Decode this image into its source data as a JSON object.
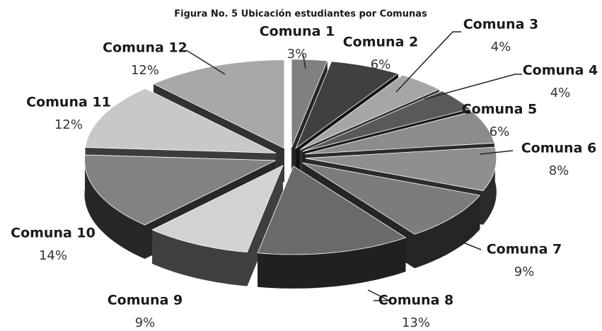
{
  "chart_data": {
    "type": "pie3d",
    "title": "Figura No. 5 Ubicación estudiantes por Comunas",
    "categories": [
      "Comuna 1",
      "Comuna 2",
      "Comuna 3",
      "Comuna 4",
      "Comuna 5",
      "Comuna 6",
      "Comuna 7",
      "Comuna 8",
      "Comuna 9",
      "Comuna 10",
      "Comuna 11",
      "Comuna 12"
    ],
    "values": [
      3,
      6,
      4,
      4,
      6,
      8,
      9,
      13,
      9,
      14,
      12,
      12
    ],
    "value_labels": [
      "3%",
      "6%",
      "4%",
      "4%",
      "6%",
      "8%",
      "9%",
      "13%",
      "9%",
      "14%",
      "12%",
      "12%"
    ],
    "colors": [
      "#808080",
      "#404040",
      "#a6a6a6",
      "#595959",
      "#8c8c8c",
      "#8f8f8f",
      "#7c7c7c",
      "#6a6a6a",
      "#d2d2d2",
      "#828282",
      "#c8c8c8",
      "#a8a8a8"
    ]
  }
}
